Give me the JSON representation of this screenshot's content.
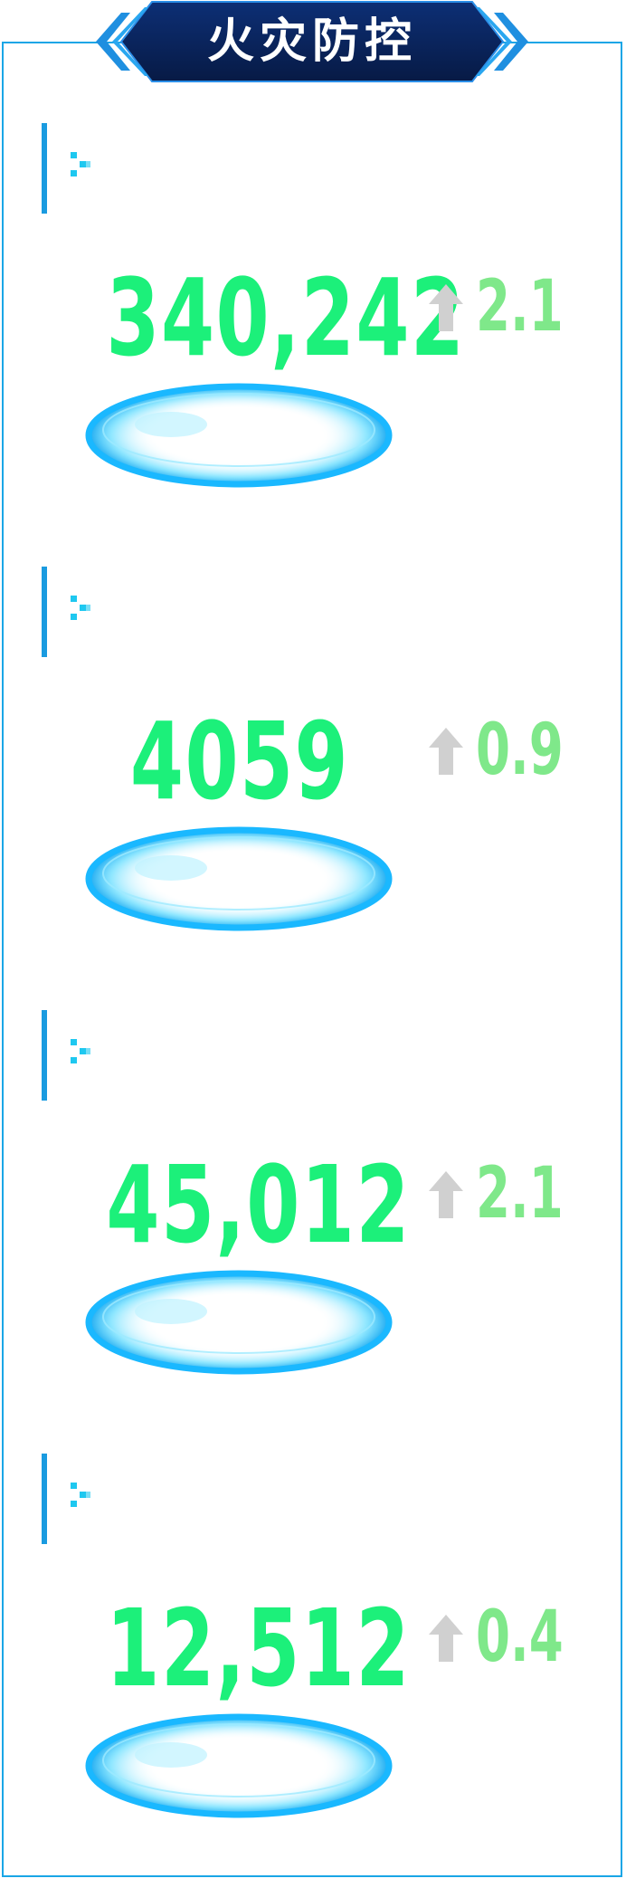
{
  "header": {
    "title": "火灾防控"
  },
  "metrics": [
    {
      "label": "",
      "value": "340,242",
      "trend_value": "2.1",
      "trend_direction": "up"
    },
    {
      "label": "",
      "value": "4059",
      "trend_value": "0.9",
      "trend_direction": "up"
    },
    {
      "label": "",
      "value": "45,012",
      "trend_value": "2.1",
      "trend_direction": "up"
    },
    {
      "label": "",
      "value": "12,512",
      "trend_value": "0.4",
      "trend_direction": "up"
    }
  ],
  "colors": {
    "value_green": "#1cf07a",
    "trend_green": "#7fe88a",
    "accent_blue": "#1a9be0",
    "banner_navy": "#0a2560",
    "arrow_gray": "#d0d0d0"
  },
  "icons": {
    "section_marker": "dots-icon",
    "trend": "arrow-up-icon",
    "base": "glow-ring-pedestal"
  }
}
